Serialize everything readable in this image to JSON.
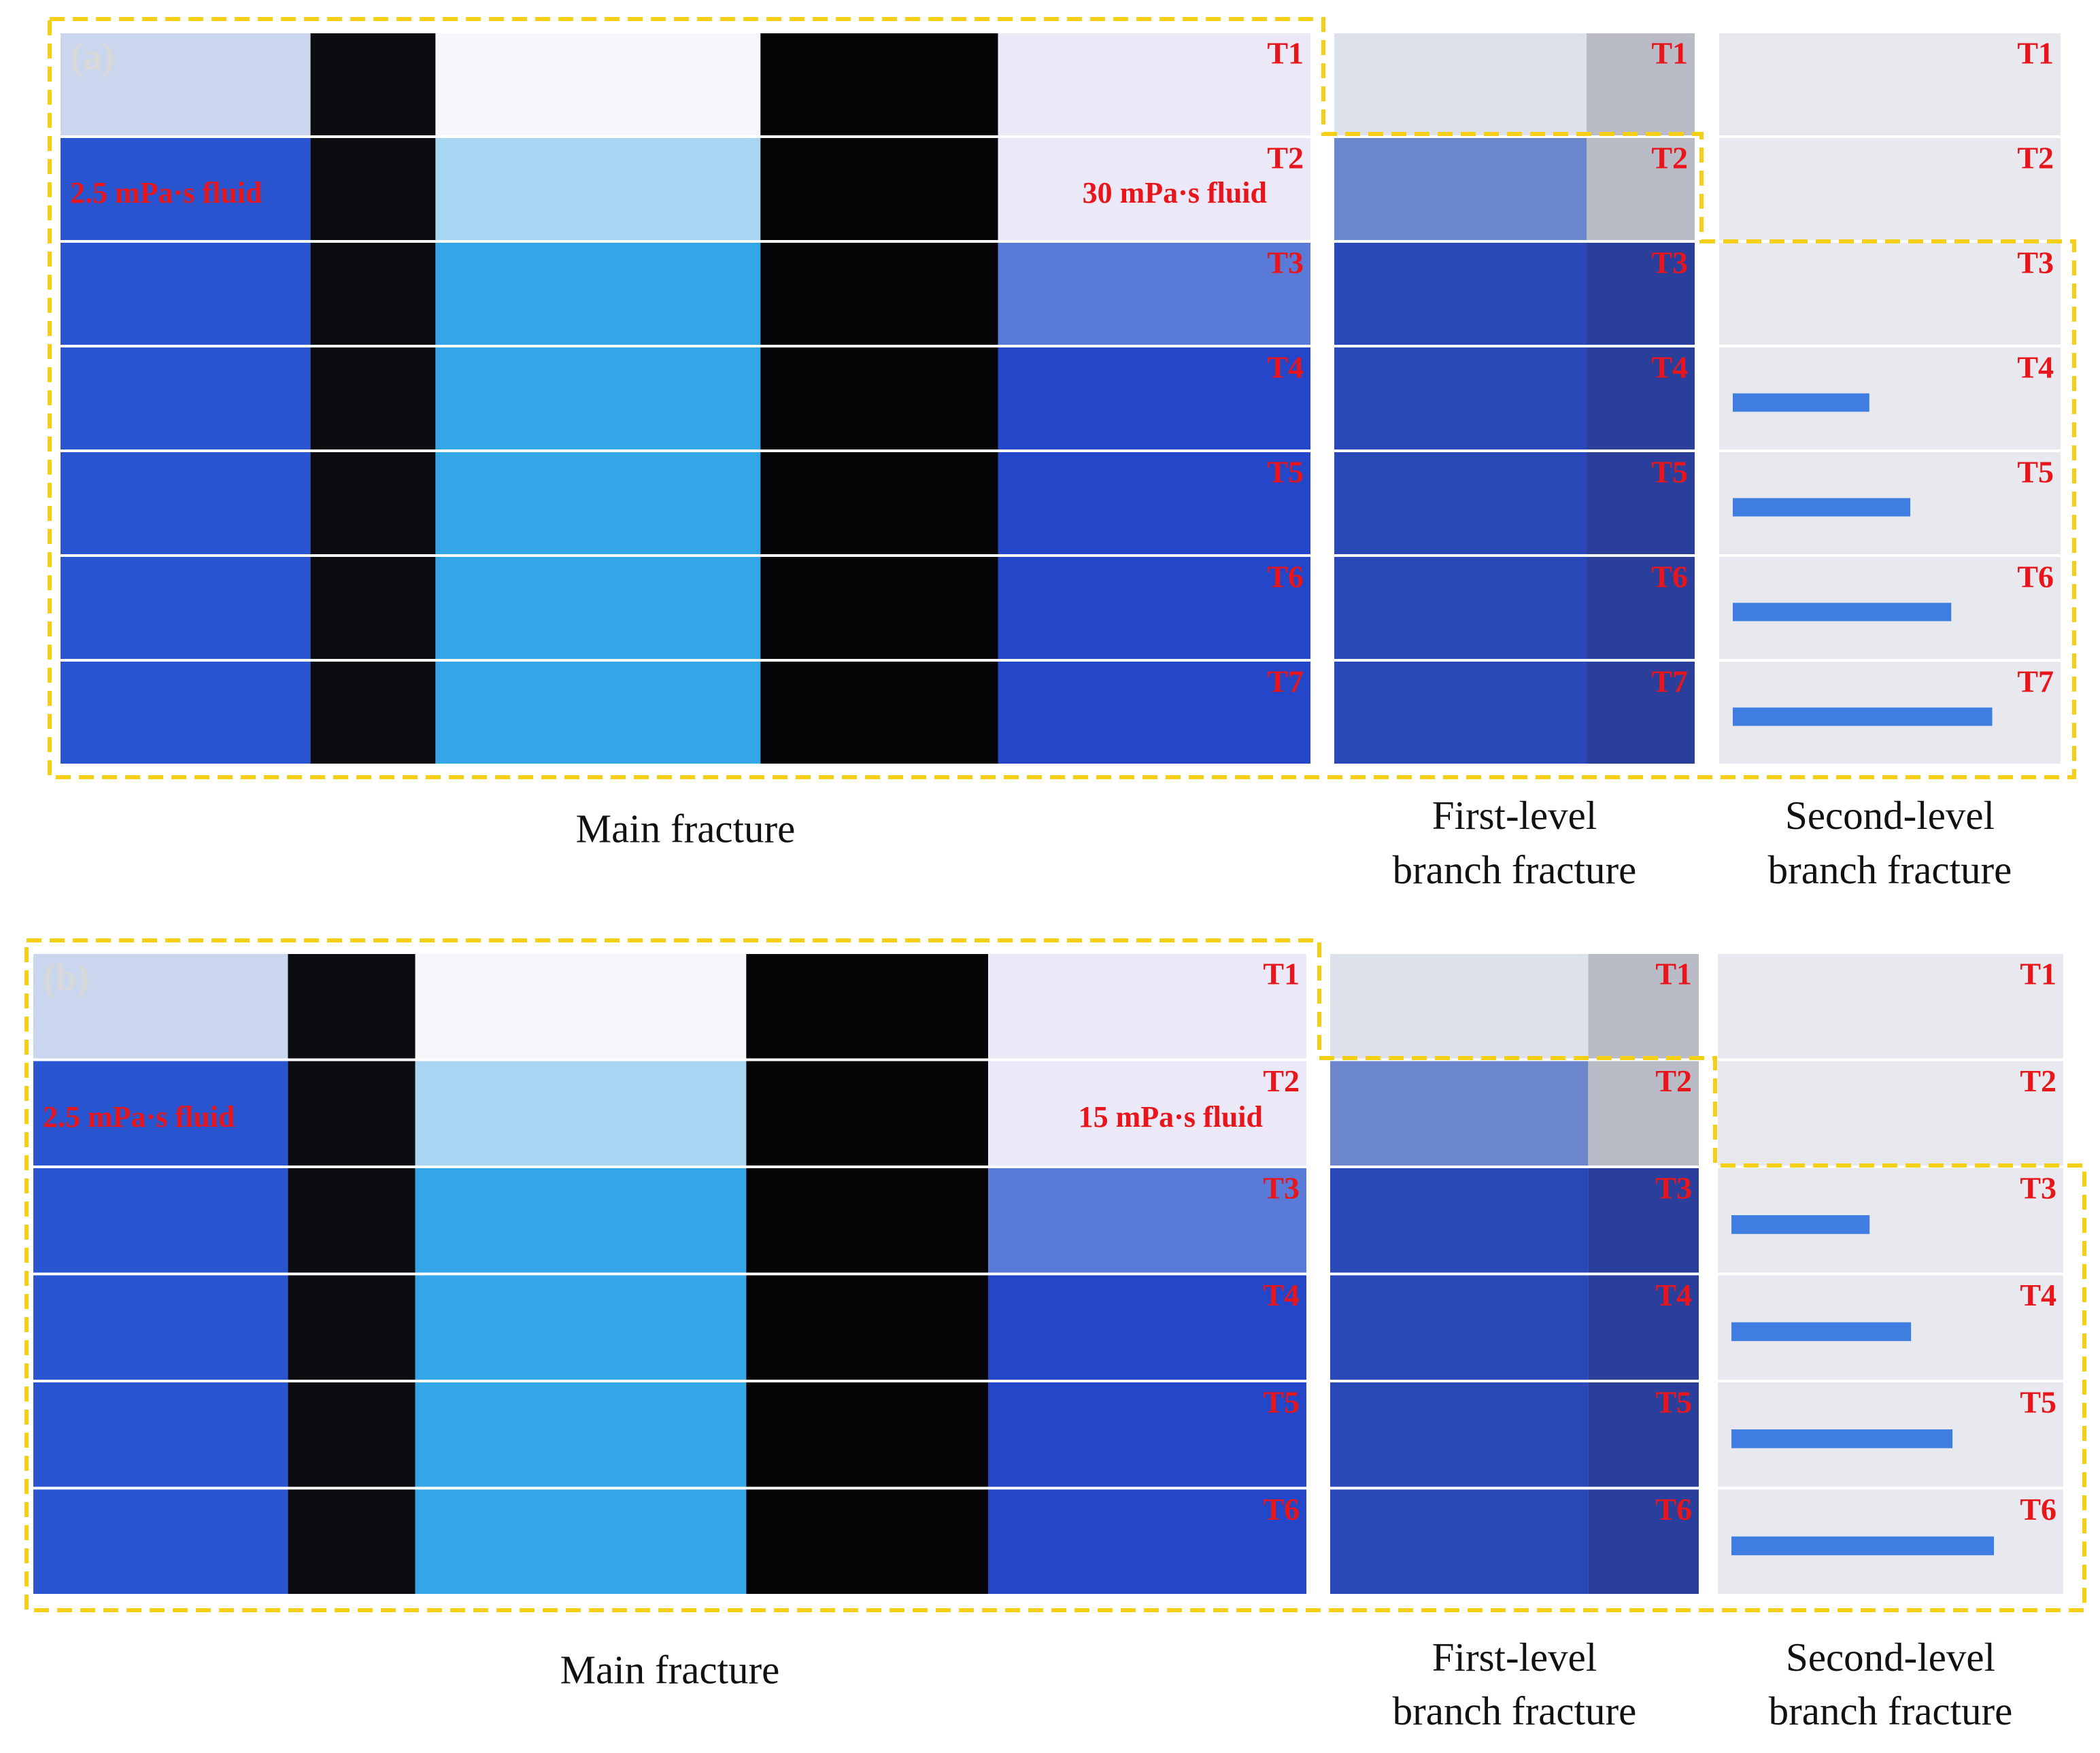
{
  "panels": [
    {
      "label": "(a)",
      "rows": [
        "T1",
        "T2",
        "T3",
        "T4",
        "T5",
        "T6",
        "T7"
      ],
      "fluids": [
        "2.5 mPa·s fluid",
        "30 mPa·s fluid"
      ],
      "captions": [
        "Main fracture",
        "First-level branch fracture",
        "Second-level branch fracture"
      ]
    },
    {
      "label": "(b)",
      "rows": [
        "T1",
        "T2",
        "T3",
        "T4",
        "T5",
        "T6"
      ],
      "fluids": [
        "2.5 mPa·s fluid",
        "15 mPa·s fluid"
      ],
      "captions": [
        "Main fracture",
        "First-level branch fracture",
        "Second-level branch fracture"
      ]
    }
  ]
}
